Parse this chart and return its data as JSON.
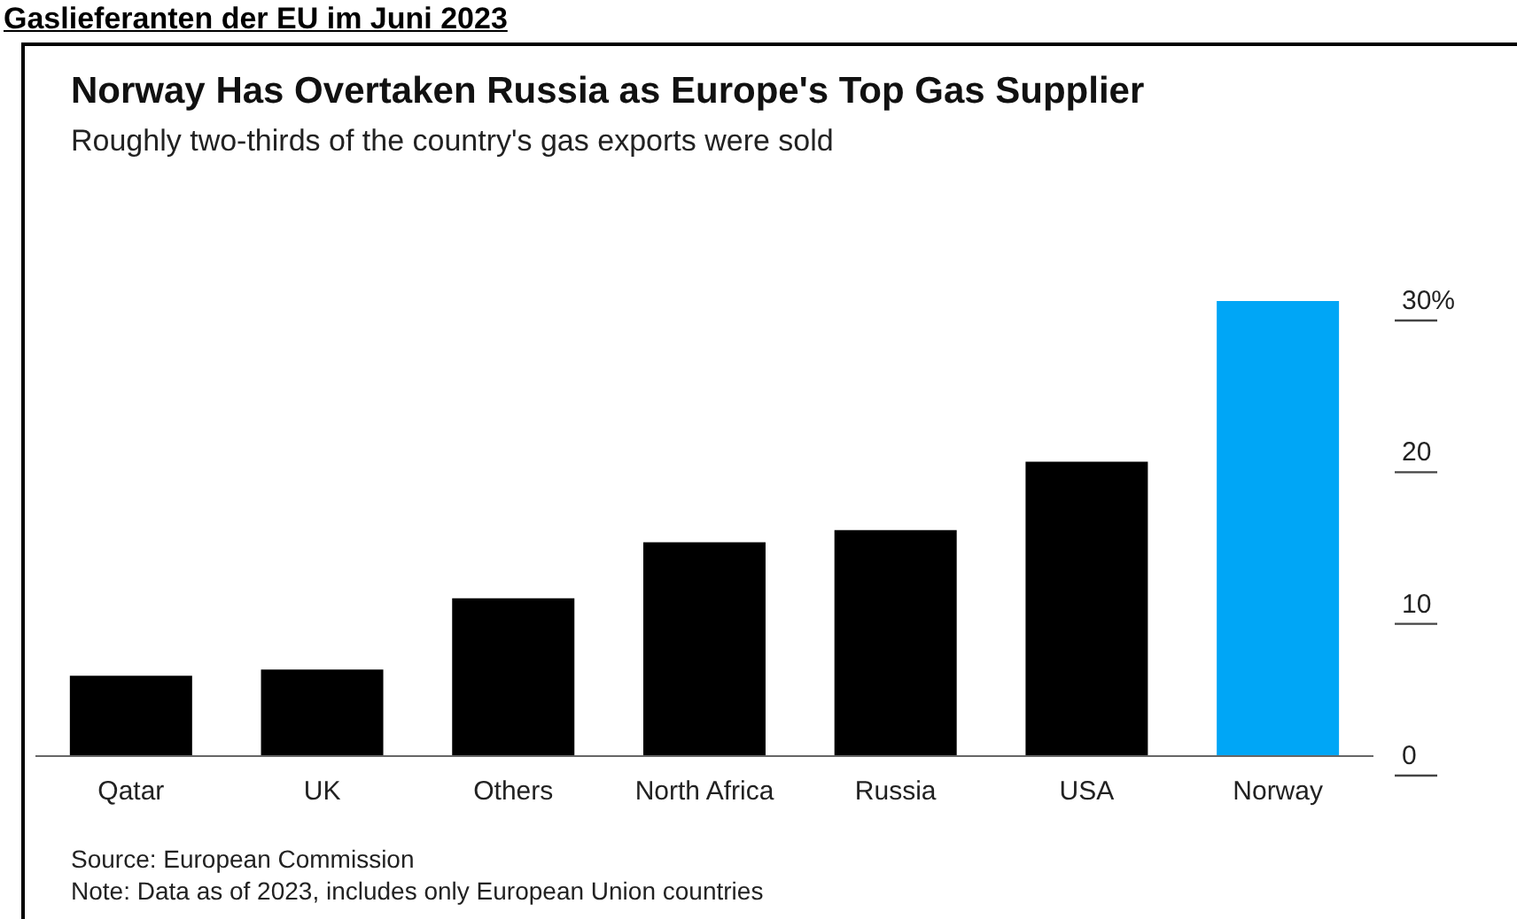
{
  "chart_data": {
    "type": "bar",
    "title": "Norway Has Overtaken Russia as Europe's Top Gas Supplier",
    "subtitle": "Roughly two-thirds of the country's gas exports were sold",
    "categories": [
      "Qatar",
      "UK",
      "Others",
      "North Africa",
      "Russia",
      "USA",
      "Norway"
    ],
    "values": [
      5.3,
      5.7,
      10.4,
      14.1,
      14.9,
      19.4,
      30
    ],
    "colors": [
      "#000000",
      "#000000",
      "#000000",
      "#000000",
      "#000000",
      "#000000",
      "#00a6f6"
    ],
    "ylim": [
      0,
      30
    ],
    "yticks": [
      0,
      10,
      20,
      {
        "value": 30,
        "label": "30%"
      }
    ],
    "grid": false,
    "annotations": [
      "Gaslieferanten der EU im Juni 2023",
      "Source: European Commission",
      "Note: Data as of 2023, includes only European Union countries"
    ]
  }
}
